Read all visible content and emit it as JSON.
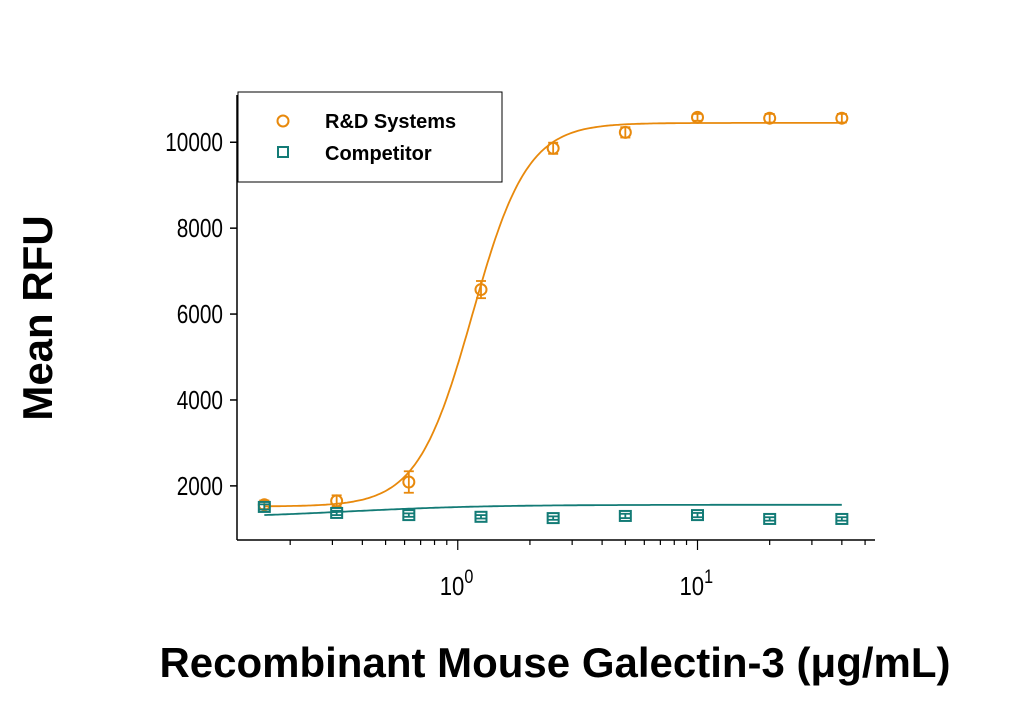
{
  "chart_data": {
    "type": "scatter",
    "xlabel": "Recombinant Mouse Galectin-3 (μg/mL)",
    "ylabel": "Mean RFU",
    "xscale": "log",
    "xlim": [
      0.12,
      55
    ],
    "ylim": [
      740,
      11100
    ],
    "x_ticks": [
      {
        "value": 1,
        "base": "10",
        "exp": "0"
      },
      {
        "value": 10,
        "base": "10",
        "exp": "1"
      }
    ],
    "y_ticks": [
      2000,
      4000,
      6000,
      8000,
      10000
    ],
    "y_tick_labels": [
      "2000",
      "4000",
      "6000",
      "8000",
      "10000"
    ],
    "grid": false,
    "legend_position": "top-left",
    "x": [
      0.156,
      0.3125,
      0.625,
      1.25,
      2.5,
      5,
      10,
      20,
      40
    ],
    "series": [
      {
        "name": "R&D Systems",
        "color": "#E8890C",
        "marker": "circle",
        "values": [
          1560,
          1650,
          2090,
          6570,
          9860,
          10230,
          10580,
          10560,
          10560
        ],
        "errors": [
          100,
          130,
          250,
          200,
          130,
          120,
          80,
          100,
          100
        ],
        "fit": {
          "model": "4PL",
          "bottom": 1520,
          "top": 10450,
          "ec50": 1.15,
          "hill": 3.8
        }
      },
      {
        "name": "Competitor",
        "color": "#137B76",
        "marker": "square",
        "values": [
          1510,
          1370,
          1320,
          1280,
          1250,
          1300,
          1320,
          1230,
          1230
        ],
        "errors": [
          60,
          50,
          40,
          40,
          40,
          50,
          50,
          40,
          40
        ],
        "fit": {
          "model": "4PL",
          "bottom": 1250,
          "top": 1560,
          "ec50": 0.35,
          "hill": 1.5
        }
      }
    ]
  }
}
